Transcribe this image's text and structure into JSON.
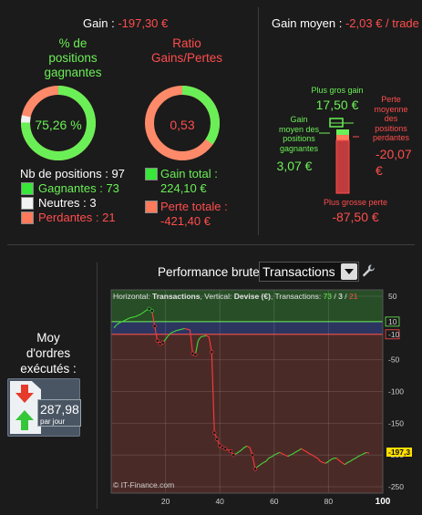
{
  "top_left": {
    "gain_label": "Gain :",
    "gain_value": "-197,30 €",
    "pct_winning_title": [
      "% de",
      "positions",
      "gagnantes"
    ],
    "pct_winning_value": "75,26 %",
    "pct_winning_fraction": 0.7526,
    "ratio_title": [
      "Ratio",
      "Gains/Pertes"
    ],
    "ratio_value": "0,53",
    "ratio_fraction": 0.3467,
    "nb_positions": "Nb de positions : 97",
    "gagnantes": "Gagnantes : 73",
    "neutres": "Neutres : 3",
    "perdantes": "Perdantes : 21",
    "gain_total_label": "Gain total :",
    "gain_total_value": "224,10 €",
    "perte_totale_label": "Perte totale :",
    "perte_totale_value": "-421,40 €"
  },
  "top_right": {
    "gain_moyen_label": "Gain moyen :",
    "gain_moyen_value": "-2,03 € / trade",
    "plus_gros_gain_label": "Plus gros gain",
    "plus_gros_gain_value": "17,50 €",
    "gain_moyen_positions_label": [
      "Gain",
      "moyen des",
      "positions",
      "gagnantes"
    ],
    "gain_moyen_positions_value": "3,07 €",
    "perte_moyenne_label": [
      "Perte",
      "moyenne",
      "des",
      "positions",
      "perdantes"
    ],
    "perte_moyenne_value": [
      "-20,07",
      "€"
    ],
    "plus_grosse_perte_label": "Plus grosse perte",
    "plus_grosse_perte_value": "-87,50 €"
  },
  "colors": {
    "green": "#6bef56",
    "red": "#ff4d4d",
    "salmon": "#ff8a6a"
  },
  "bottom_left": {
    "moy_label": [
      "Moy",
      "d'ordres",
      "exécutés :"
    ],
    "orders_value": "287,98",
    "orders_unit": "par jour"
  },
  "performance": {
    "title": "Performance brute",
    "select_value": "Transactions",
    "tools_icon": "wrench-icon",
    "info_parts": {
      "h_label": "Horizontal: ",
      "h_value": "Transactions",
      "v_label": ", Vertical: ",
      "v_value": "Devise (€)",
      "t_label": ", Transactions: ",
      "t_green": "73",
      "sep1": " / ",
      "t_white": "3",
      "sep2": " / ",
      "t_red": "21"
    },
    "watermark": "© IT-Finance.com",
    "current_value_label": "-197,3"
  },
  "chart_data": {
    "type": "line",
    "x_ticks": [
      "20",
      "40",
      "60",
      "80",
      "100"
    ],
    "y_ticks": [
      "50",
      "10",
      "-10",
      "-50",
      "-100",
      "-150",
      "-200",
      "-250"
    ],
    "xlim": [
      0,
      100
    ],
    "ylim": [
      -260,
      60
    ],
    "bands": {
      "green_above": 10,
      "red_below": -10
    },
    "last_value": -197.3,
    "series": [
      {
        "values": [
          [
            1,
            0
          ],
          [
            2,
            5
          ],
          [
            3,
            8
          ],
          [
            4,
            10
          ],
          [
            5,
            12
          ],
          [
            6,
            14
          ],
          [
            7,
            16
          ],
          [
            8,
            17
          ],
          [
            9,
            18
          ],
          [
            10,
            20
          ],
          [
            11,
            22
          ],
          [
            12,
            25
          ],
          [
            13,
            28
          ],
          [
            14,
            30
          ],
          [
            15,
            27
          ],
          [
            16,
            3
          ],
          [
            17,
            -20
          ],
          [
            18,
            -25
          ],
          [
            19,
            -23
          ],
          [
            20,
            -18
          ],
          [
            21,
            -12
          ],
          [
            22,
            -8
          ],
          [
            23,
            -6
          ],
          [
            24,
            -4
          ],
          [
            25,
            -3
          ],
          [
            26,
            -2
          ],
          [
            27,
            -1
          ],
          [
            28,
            -2
          ],
          [
            29,
            -3
          ],
          [
            30,
            -40
          ],
          [
            31,
            -42
          ],
          [
            32,
            -20
          ],
          [
            33,
            -14
          ],
          [
            34,
            -13
          ],
          [
            35,
            -12
          ],
          [
            36,
            -14
          ],
          [
            37,
            -38
          ],
          [
            38,
            -165
          ],
          [
            39,
            -175
          ],
          [
            40,
            -185
          ],
          [
            41,
            -188
          ],
          [
            42,
            -190
          ],
          [
            43,
            -192
          ],
          [
            44,
            -194
          ],
          [
            45,
            -200
          ],
          [
            46,
            -198
          ],
          [
            47,
            -195
          ],
          [
            48,
            -192
          ],
          [
            49,
            -188
          ],
          [
            50,
            -186
          ],
          [
            51,
            -188
          ],
          [
            52,
            -200
          ],
          [
            53,
            -222
          ],
          [
            54,
            -218
          ],
          [
            55,
            -215
          ],
          [
            56,
            -212
          ],
          [
            57,
            -210
          ],
          [
            58,
            -205
          ],
          [
            59,
            -203
          ],
          [
            60,
            -200
          ],
          [
            61,
            -198
          ],
          [
            62,
            -196
          ],
          [
            63,
            -198
          ],
          [
            64,
            -200
          ],
          [
            65,
            -202
          ],
          [
            66,
            -200
          ],
          [
            67,
            -198
          ],
          [
            68,
            -195
          ],
          [
            69,
            -193
          ],
          [
            70,
            -190
          ],
          [
            71,
            -193
          ],
          [
            72,
            -195
          ],
          [
            73,
            -198
          ],
          [
            74,
            -200
          ],
          [
            75,
            -203
          ],
          [
            76,
            -205
          ],
          [
            77,
            -210
          ],
          [
            78,
            -212
          ],
          [
            79,
            -213
          ],
          [
            80,
            -210
          ],
          [
            81,
            -207
          ],
          [
            82,
            -205
          ],
          [
            83,
            -205
          ],
          [
            84,
            -209
          ],
          [
            85,
            -212
          ],
          [
            86,
            -215
          ],
          [
            87,
            -212
          ],
          [
            88,
            -210
          ],
          [
            89,
            -207
          ],
          [
            90,
            -205
          ],
          [
            91,
            -202
          ],
          [
            92,
            -200
          ],
          [
            93,
            -198
          ],
          [
            94,
            -196
          ],
          [
            95,
            -197.3
          ]
        ]
      }
    ],
    "loss_markers_x": [
      16,
      17,
      18,
      19,
      30,
      31,
      37,
      38,
      39,
      40,
      41,
      42,
      44,
      45,
      52,
      53
    ]
  }
}
